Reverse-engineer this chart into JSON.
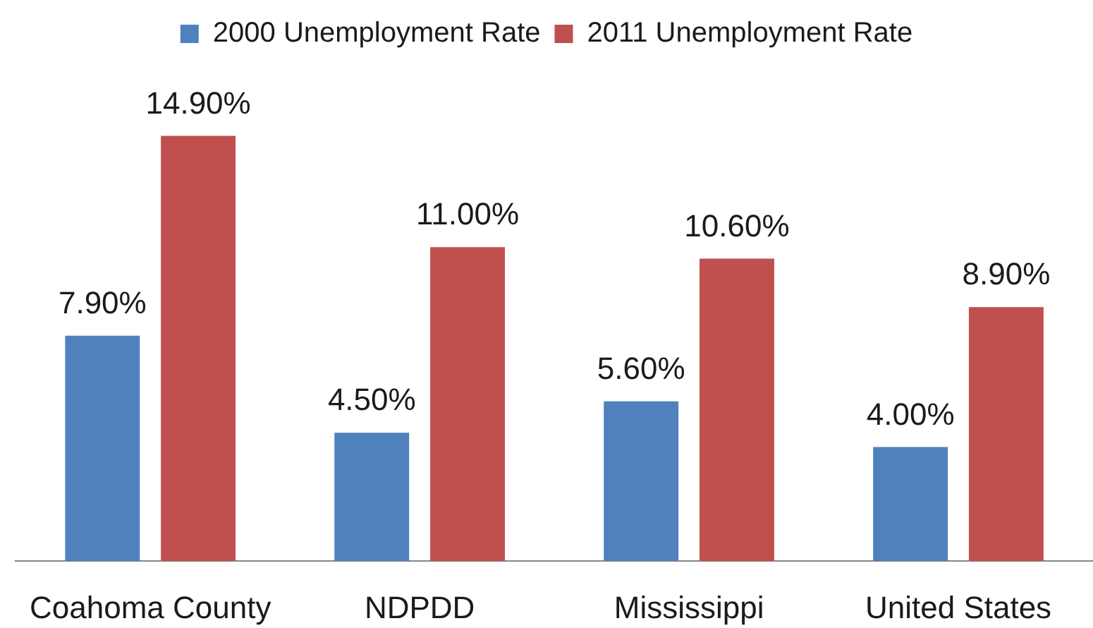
{
  "chart_data": {
    "type": "bar",
    "categories": [
      "Coahoma County",
      "NDPDD",
      "Mississippi",
      "United States"
    ],
    "series": [
      {
        "name": "2000 Unemployment Rate",
        "color": "#4f81bd",
        "values": [
          7.9,
          4.5,
          5.6,
          4.0
        ],
        "value_labels": [
          "7.90%",
          "4.50%",
          "5.60%",
          "4.00%"
        ]
      },
      {
        "name": "2011 Unemployment Rate",
        "color": "#c0504d",
        "values": [
          14.9,
          11.0,
          10.6,
          8.9
        ],
        "value_labels": [
          "14.90%",
          "11.00%",
          "10.60%",
          "8.90%"
        ]
      }
    ],
    "legend": "top",
    "tick_labels": "x"
  }
}
